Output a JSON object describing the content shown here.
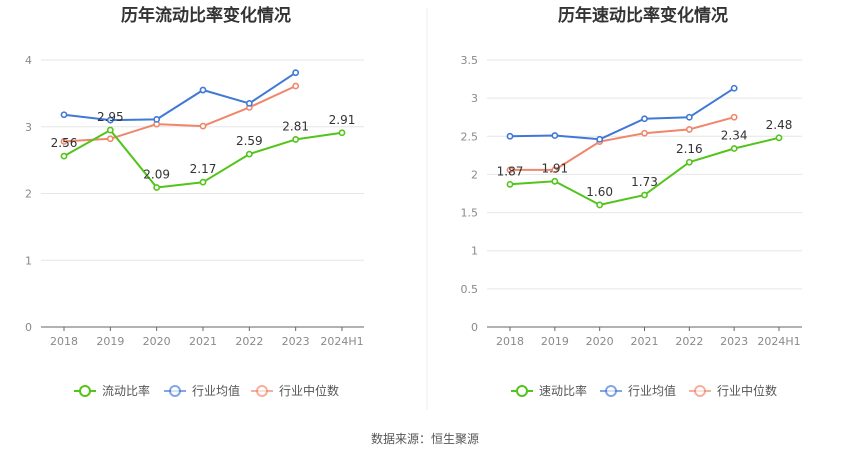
{
  "source_text": "数据来源：恒生聚源",
  "chart_data": [
    {
      "type": "line",
      "title": "历年流动比率变化情况",
      "categories": [
        "2018",
        "2019",
        "2020",
        "2021",
        "2022",
        "2023",
        "2024H1"
      ],
      "yticks": [
        "0",
        "1",
        "2",
        "3",
        "4"
      ],
      "ylim": [
        0,
        4
      ],
      "grid": true,
      "legend_position": "bottom",
      "series": [
        {
          "name": "流动比率",
          "color": "#52c41a",
          "values": [
            2.56,
            2.95,
            2.09,
            2.17,
            2.59,
            2.81,
            2.91
          ],
          "labels": [
            "2.56",
            "2.95",
            "2.09",
            "2.17",
            "2.59",
            "2.81",
            "2.91"
          ]
        },
        {
          "name": "行业均值",
          "color": "#3f78d6",
          "values": [
            3.18,
            3.1,
            3.11,
            3.55,
            3.35,
            3.81,
            null
          ]
        },
        {
          "name": "行业中位数",
          "color": "#f0866a",
          "values": [
            2.78,
            2.82,
            3.04,
            3.01,
            3.29,
            3.61,
            null
          ]
        }
      ]
    },
    {
      "type": "line",
      "title": "历年速动比率变化情况",
      "categories": [
        "2018",
        "2019",
        "2020",
        "2021",
        "2022",
        "2023",
        "2024H1"
      ],
      "yticks": [
        "0",
        "0.5",
        "1",
        "1.5",
        "2",
        "2.5",
        "3",
        "3.5"
      ],
      "ylim": [
        0,
        3.5
      ],
      "grid": true,
      "legend_position": "bottom",
      "series": [
        {
          "name": "速动比率",
          "color": "#52c41a",
          "values": [
            1.87,
            1.91,
            1.6,
            1.73,
            2.16,
            2.34,
            2.48
          ],
          "labels": [
            "1.87",
            "1.91",
            "1.60",
            "1.73",
            "2.16",
            "2.34",
            "2.48"
          ]
        },
        {
          "name": "行业均值",
          "color": "#3f78d6",
          "values": [
            2.5,
            2.51,
            2.46,
            2.73,
            2.75,
            3.13,
            null
          ]
        },
        {
          "name": "行业中位数",
          "color": "#f0866a",
          "values": [
            2.06,
            2.06,
            2.43,
            2.54,
            2.59,
            2.75,
            null
          ]
        }
      ]
    }
  ]
}
